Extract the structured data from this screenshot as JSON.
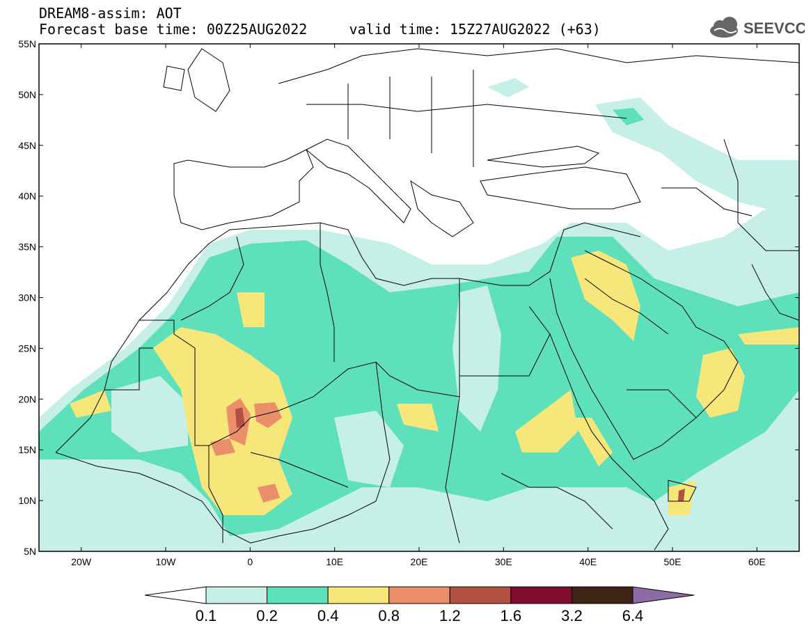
{
  "header": {
    "title": "DREAM8-assim: AOT",
    "base_label": "Forecast base time:",
    "base_time": "00Z25AUG2022",
    "valid_label": "valid time:",
    "valid_time": "15Z27AUG2022 (+63)"
  },
  "logo": {
    "text": "SEEVCCC",
    "icon": "cloud-icon"
  },
  "map": {
    "lon_range": [
      -25,
      65
    ],
    "lat_range": [
      5,
      55
    ],
    "lon_ticks": [
      {
        "value": -20,
        "label": "20W"
      },
      {
        "value": -10,
        "label": "10W"
      },
      {
        "value": 0,
        "label": "0"
      },
      {
        "value": 10,
        "label": "10E"
      },
      {
        "value": 20,
        "label": "20E"
      },
      {
        "value": 30,
        "label": "30E"
      },
      {
        "value": 40,
        "label": "40E"
      },
      {
        "value": 50,
        "label": "50E"
      },
      {
        "value": 60,
        "label": "60E"
      }
    ],
    "lat_ticks": [
      {
        "value": 55,
        "label": "55N"
      },
      {
        "value": 50,
        "label": "50N"
      },
      {
        "value": 45,
        "label": "45N"
      },
      {
        "value": 40,
        "label": "40N"
      },
      {
        "value": 35,
        "label": "35N"
      },
      {
        "value": 30,
        "label": "30N"
      },
      {
        "value": 25,
        "label": "25N"
      },
      {
        "value": 20,
        "label": "20N"
      },
      {
        "value": 15,
        "label": "15N"
      },
      {
        "value": 10,
        "label": "10N"
      },
      {
        "value": 5,
        "label": "5N"
      }
    ]
  },
  "colorbar": {
    "colors": [
      "#ffffff",
      "#c6efe8",
      "#5ee0bb",
      "#f7e67a",
      "#eb8e6a",
      "#b15142",
      "#7f0e2e",
      "#3d2414",
      "#8d6ba6"
    ],
    "labels": [
      "0.1",
      "0.2",
      "0.4",
      "0.8",
      "1.2",
      "1.6",
      "3.2",
      "6.4"
    ]
  }
}
